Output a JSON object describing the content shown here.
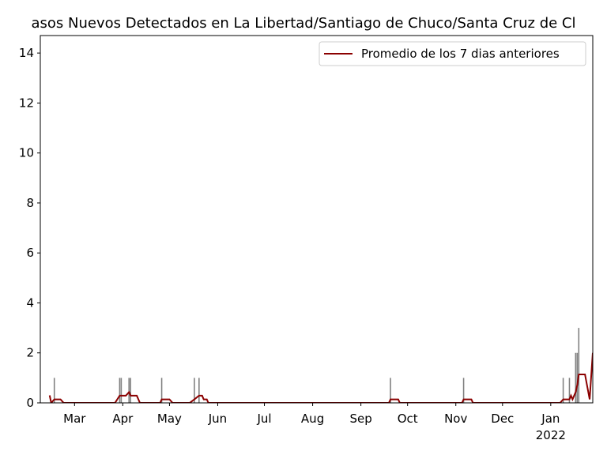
{
  "chart_data": {
    "type": "bar_line",
    "title": "asos Nuevos Detectados en La Libertad/Santiago de Chuco/Santa Cruz de Cl",
    "xlim": [
      6,
      361
    ],
    "xticks": [
      {
        "value": 28,
        "label": "Mar"
      },
      {
        "value": 59,
        "label": "Apr"
      },
      {
        "value": 89,
        "label": "May"
      },
      {
        "value": 120,
        "label": "Jun"
      },
      {
        "value": 150,
        "label": "Jul"
      },
      {
        "value": 181,
        "label": "Aug"
      },
      {
        "value": 212,
        "label": "Sep"
      },
      {
        "value": 242,
        "label": "Oct"
      },
      {
        "value": 273,
        "label": "Nov"
      },
      {
        "value": 303,
        "label": "Dec"
      },
      {
        "value": 334,
        "label": "Jan\n2022"
      }
    ],
    "ylim": [
      0,
      14.7
    ],
    "yticks": [
      0,
      2,
      4,
      6,
      8,
      10,
      12,
      14
    ],
    "legend": "upper right",
    "bars": {
      "color": "#808080",
      "x": [
        15,
        57,
        58,
        63,
        64,
        84,
        105,
        108,
        231,
        278,
        342,
        346,
        350,
        351,
        352
      ],
      "values": [
        1,
        1,
        1,
        1,
        1,
        1,
        1,
        1,
        1,
        1,
        1,
        1,
        2,
        2,
        3
      ]
    },
    "series": [
      {
        "name": "Promedio de los 7 dias anteriores",
        "color": "#8b0000",
        "x": [
          12,
          13,
          15,
          19,
          21,
          54,
          57,
          61,
          63,
          64,
          68,
          70,
          83,
          84,
          89,
          91,
          102,
          105,
          108,
          110,
          111,
          113,
          114,
          230,
          231,
          236,
          237,
          277,
          278,
          283,
          284,
          340,
          342,
          346,
          347,
          348,
          350,
          351,
          352,
          356,
          359,
          361
        ],
        "values": [
          0.3,
          0,
          0.14,
          0.14,
          0,
          0,
          0.29,
          0.29,
          0.43,
          0.29,
          0.29,
          0,
          0,
          0.14,
          0.14,
          0,
          0,
          0.14,
          0.29,
          0.29,
          0.14,
          0.14,
          0,
          0,
          0.14,
          0.14,
          0,
          0,
          0.14,
          0.14,
          0,
          0,
          0.14,
          0.14,
          0.29,
          0.14,
          0.43,
          0.71,
          1.14,
          1.14,
          0.14,
          2
        ]
      }
    ]
  }
}
